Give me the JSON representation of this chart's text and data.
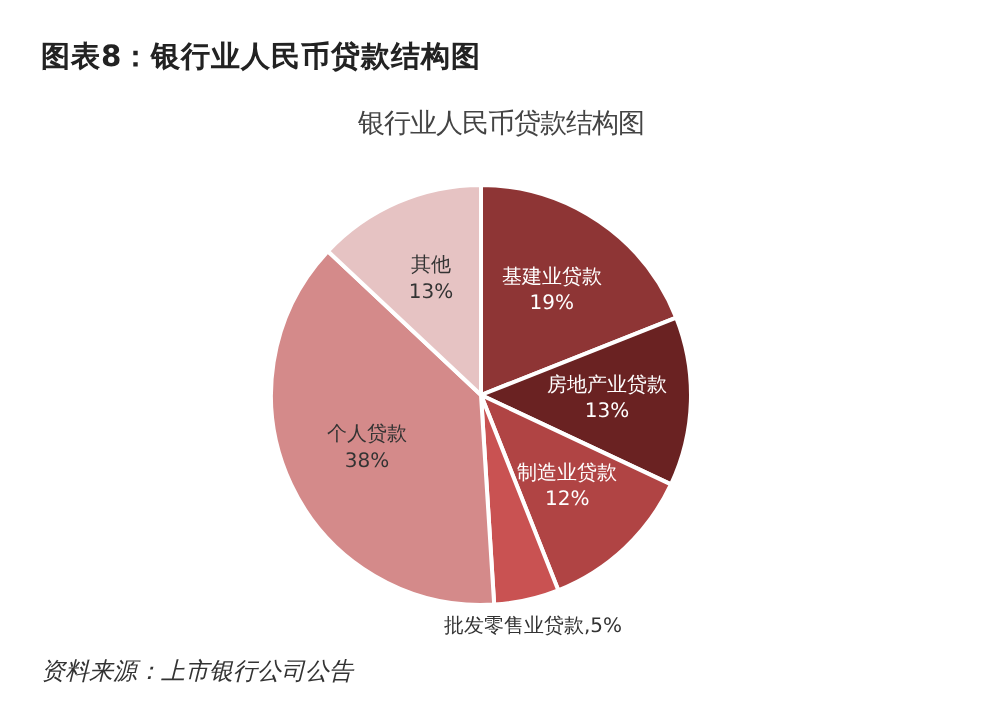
{
  "chart_data": {
    "type": "pie",
    "title": "图表8：银行业人民币贷款结构图",
    "subtitle": "银行业人民币贷款结构图",
    "categories": [
      "基建业贷款",
      "房地产业贷款",
      "制造业贷款",
      "批发零售业贷款",
      "个人贷款",
      "其他"
    ],
    "values": [
      19,
      13,
      12,
      5,
      38,
      13
    ],
    "value_labels": [
      "19%",
      "13%",
      "12%",
      "5%",
      "38%",
      "13%"
    ],
    "colors": [
      "#8e3535",
      "#6a2222",
      "#b04444",
      "#c95252",
      "#d48a8a",
      "#e6c3c3"
    ],
    "annotations": [
      "资料来源：上市银行公司公告"
    ]
  }
}
